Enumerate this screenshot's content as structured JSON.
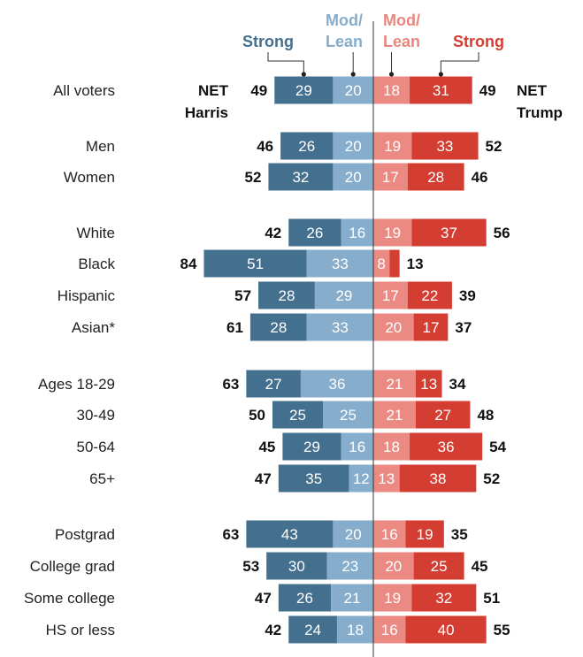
{
  "chart_data": {
    "type": "bar",
    "categories": [
      "All voters",
      "Men",
      "Women",
      "White",
      "Black",
      "Hispanic",
      "Asian*",
      "Ages 18-29",
      "30-49",
      "50-64",
      "65+",
      "Postgrad",
      "College grad",
      "Some college",
      "HS or less"
    ],
    "groups": [
      1,
      2,
      2,
      3,
      3,
      3,
      3,
      4,
      4,
      4,
      4,
      5,
      5,
      5,
      5
    ],
    "series": [
      {
        "name": "Strong",
        "side": "Harris",
        "values": [
          29,
          26,
          32,
          26,
          51,
          28,
          28,
          27,
          25,
          29,
          35,
          43,
          30,
          26,
          24
        ]
      },
      {
        "name": "Mod/ Lean",
        "side": "Harris",
        "values": [
          20,
          20,
          20,
          16,
          33,
          29,
          33,
          36,
          25,
          16,
          12,
          20,
          23,
          21,
          18
        ]
      },
      {
        "name": "Mod/ Lean",
        "side": "Trump",
        "values": [
          18,
          19,
          17,
          19,
          8,
          17,
          20,
          21,
          21,
          18,
          13,
          16,
          20,
          19,
          16
        ]
      },
      {
        "name": "Strong",
        "side": "Trump",
        "values": [
          31,
          33,
          28,
          37,
          5,
          22,
          17,
          13,
          27,
          36,
          38,
          19,
          25,
          32,
          40
        ]
      }
    ],
    "net_harris": [
      49,
      46,
      52,
      42,
      84,
      57,
      61,
      63,
      50,
      45,
      47,
      63,
      53,
      47,
      42
    ],
    "net_trump": [
      49,
      52,
      46,
      56,
      13,
      39,
      37,
      34,
      48,
      54,
      52,
      35,
      45,
      51,
      55
    ],
    "segment_labels_shown": [
      [
        true,
        true,
        true,
        true
      ],
      [
        true,
        true,
        true,
        true
      ],
      [
        true,
        true,
        true,
        true
      ],
      [
        true,
        true,
        true,
        true
      ],
      [
        true,
        true,
        true,
        false
      ],
      [
        true,
        true,
        true,
        true
      ],
      [
        true,
        true,
        true,
        true
      ],
      [
        true,
        true,
        true,
        true
      ],
      [
        true,
        true,
        true,
        true
      ],
      [
        true,
        true,
        true,
        true
      ],
      [
        true,
        true,
        true,
        true
      ],
      [
        true,
        true,
        true,
        true
      ],
      [
        true,
        true,
        true,
        true
      ],
      [
        true,
        true,
        true,
        true
      ],
      [
        true,
        true,
        true,
        true
      ]
    ],
    "net_labels": {
      "harris": [
        "NET",
        "Harris"
      ],
      "trump": [
        "NET",
        "Trump"
      ]
    },
    "colors": {
      "harris_strong": "#44708f",
      "harris_lean": "#86adcb",
      "trump_lean": "#eb8a82",
      "trump_strong": "#d43d32",
      "harris_header": "#44708f",
      "harris_lean_header": "#86adcb",
      "trump_lean_header": "#e8877e",
      "trump_strong_header": "#d43d32"
    }
  }
}
